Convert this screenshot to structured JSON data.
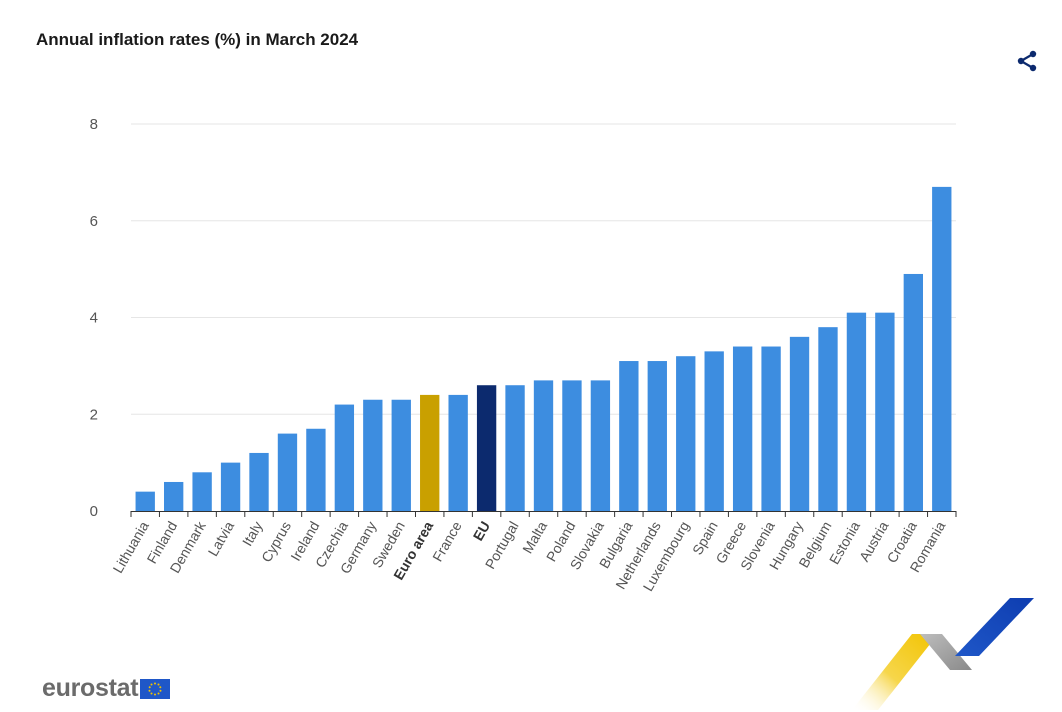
{
  "chart_data": {
    "type": "bar",
    "title": "Annual inflation rates (%) in March 2024",
    "xlabel": "",
    "ylabel": "",
    "ylim": [
      0,
      8
    ],
    "yticks": [
      0,
      2,
      4,
      6,
      8
    ],
    "grid": true,
    "categories": [
      "Lithuania",
      "Finland",
      "Denmark",
      "Latvia",
      "Italy",
      "Cyprus",
      "Ireland",
      "Czechia",
      "Germany",
      "Sweden",
      "Euro area",
      "France",
      "EU",
      "Portugal",
      "Malta",
      "Poland",
      "Slovakia",
      "Bulgaria",
      "Netherlands",
      "Luxembourg",
      "Spain",
      "Greece",
      "Slovenia",
      "Hungary",
      "Belgium",
      "Estonia",
      "Austria",
      "Croatia",
      "Romania"
    ],
    "values": [
      0.4,
      0.6,
      0.8,
      1.0,
      1.2,
      1.6,
      1.7,
      2.2,
      2.3,
      2.3,
      2.4,
      2.4,
      2.6,
      2.6,
      2.7,
      2.7,
      2.7,
      3.1,
      3.1,
      3.2,
      3.3,
      3.4,
      3.4,
      3.6,
      3.8,
      4.1,
      4.1,
      4.9,
      6.7
    ],
    "highlight": {
      "Euro area": "#c9a000",
      "EU": "#0c2a6e"
    },
    "bold_labels": [
      "Euro area",
      "EU"
    ]
  },
  "colors": {
    "bar": "#3d8de0",
    "grid": "#e6e6e6",
    "axis": "#333333"
  },
  "brand": {
    "logo_text": "eurostat"
  },
  "icons": {
    "share": "share-icon"
  }
}
